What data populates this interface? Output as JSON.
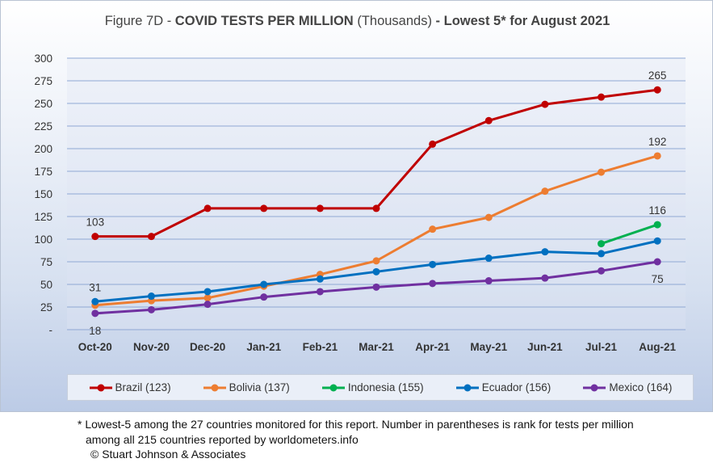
{
  "title": {
    "prefix": "Figure 7D - ",
    "main": "COVID TESTS PER MILLION",
    "units": " (Thousands)",
    "suffix": " - Lowest 5* for August 2021"
  },
  "chart_data": {
    "type": "line",
    "title": "Figure 7D - COVID TESTS PER MILLION (Thousands) - Lowest 5* for August 2021",
    "categories": [
      "Oct-20",
      "Nov-20",
      "Dec-20",
      "Jan-21",
      "Feb-21",
      "Mar-21",
      "Apr-21",
      "May-21",
      "Jun-21",
      "Jul-21",
      "Aug-21"
    ],
    "y_ticks": [
      "300",
      "275",
      "250",
      "225",
      "200",
      "175",
      "150",
      "125",
      "100",
      "75",
      "50",
      "25",
      "-"
    ],
    "ylim": [
      0,
      300
    ],
    "grid": true,
    "legend_position": "bottom",
    "series": [
      {
        "name": "Brazil (123)",
        "color": "#c00000",
        "values": [
          103,
          103,
          134,
          134,
          134,
          134,
          205,
          231,
          249,
          257,
          265
        ]
      },
      {
        "name": "Bolivia (137)",
        "color": "#ed7d31",
        "values": [
          27,
          32,
          35,
          48,
          61,
          76,
          111,
          124,
          153,
          174,
          192
        ]
      },
      {
        "name": "Indonesia (155)",
        "color": "#00b050",
        "values": [
          null,
          null,
          null,
          null,
          null,
          null,
          null,
          null,
          null,
          95,
          116
        ]
      },
      {
        "name": "Ecuador (156)",
        "color": "#0070c0",
        "values": [
          31,
          37,
          42,
          50,
          56,
          64,
          72,
          79,
          86,
          84,
          98
        ]
      },
      {
        "name": "Mexico (164)",
        "color": "#7030a0",
        "values": [
          18,
          22,
          28,
          36,
          42,
          47,
          51,
          54,
          57,
          65,
          75
        ]
      }
    ],
    "data_labels": [
      {
        "text": "103",
        "series": "Brazil (123)",
        "x": "Oct-20",
        "y": 103,
        "pos": "above"
      },
      {
        "text": "31",
        "series": "Ecuador (156)",
        "x": "Oct-20",
        "y": 31,
        "pos": "above"
      },
      {
        "text": "18",
        "series": "Mexico (164)",
        "x": "Oct-20",
        "y": 18,
        "pos": "below"
      },
      {
        "text": "265",
        "series": "Brazil (123)",
        "x": "Aug-21",
        "y": 265,
        "pos": "above"
      },
      {
        "text": "192",
        "series": "Bolivia (137)",
        "x": "Aug-21",
        "y": 192,
        "pos": "above"
      },
      {
        "text": "116",
        "series": "Indonesia (155)",
        "x": "Aug-21",
        "y": 116,
        "pos": "above"
      },
      {
        "text": "75",
        "series": "Mexico (164)",
        "x": "Aug-21",
        "y": 75,
        "pos": "below"
      }
    ]
  },
  "footnote": {
    "line1": "* Lowest-5 among the 27 countries monitored for this report. Number in parentheses is rank for tests per million",
    "line2": "among all 215 countries reported by worldometers.info",
    "line3": "© Stuart Johnson & Associates"
  }
}
